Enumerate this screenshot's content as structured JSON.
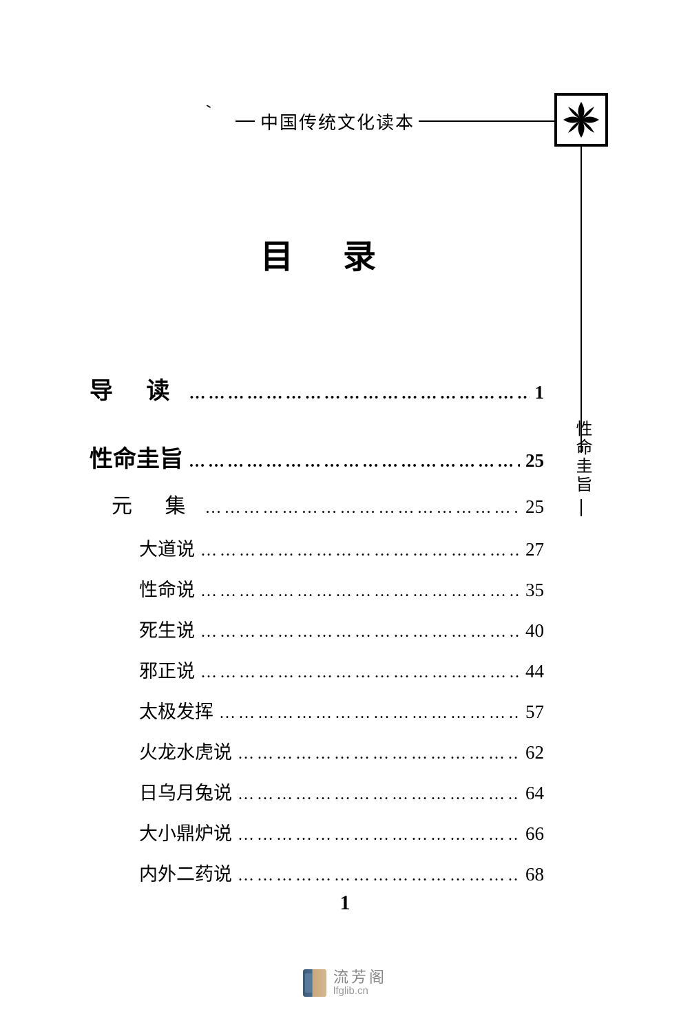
{
  "header_title": "中国传统文化读本",
  "vertical_sidebar_text": "性命圭旨",
  "main_title": "目 录",
  "page_number": "1",
  "toc_top": [
    {
      "label": "导  读",
      "page": "1",
      "level": "level-0"
    }
  ],
  "toc_section": {
    "label": "性命圭旨",
    "page": "25",
    "level": "level-1"
  },
  "toc_subsection": {
    "label": "元 集",
    "page": "25",
    "level": "level-1b"
  },
  "toc_entries": [
    {
      "label": "大道说",
      "page": "27"
    },
    {
      "label": "性命说",
      "page": "35"
    },
    {
      "label": "死生说",
      "page": "40"
    },
    {
      "label": "邪正说",
      "page": "44"
    },
    {
      "label": "太极发挥",
      "page": "57"
    },
    {
      "label": "火龙水虎说",
      "page": "62"
    },
    {
      "label": "日乌月兔说",
      "page": "64"
    },
    {
      "label": "大小鼎炉说",
      "page": "66"
    },
    {
      "label": "内外二药说",
      "page": "68"
    }
  ],
  "dots": "……………………………………………………………………………………",
  "watermark": {
    "cn": "流芳阁",
    "url": "lfglib.cn"
  },
  "stray": "、",
  "colors": {
    "text": "#000000",
    "bg": "#ffffff",
    "wm_text": "#888888",
    "wm_url": "#999999"
  }
}
